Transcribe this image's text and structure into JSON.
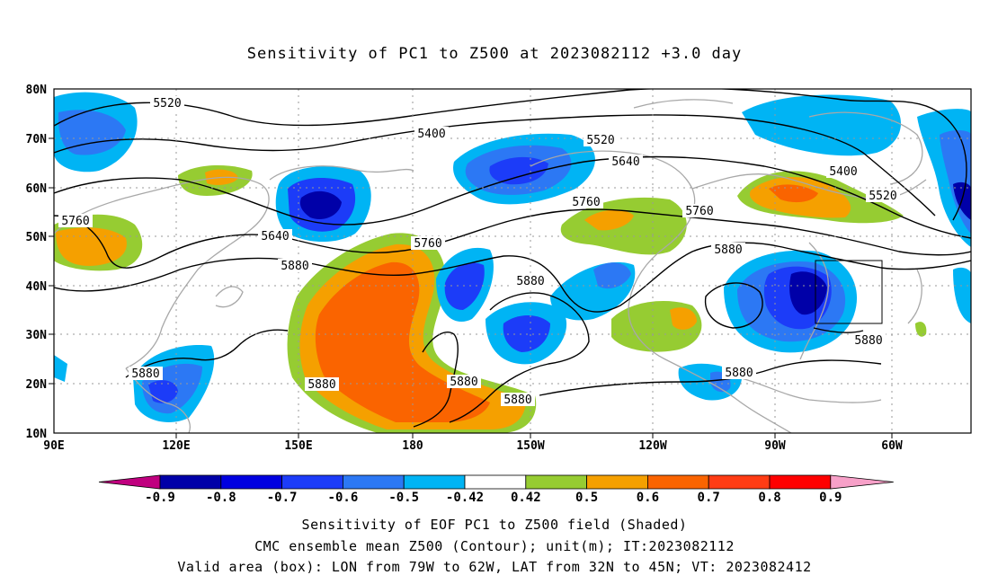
{
  "title": "Sensitivity of PC1 to Z500 at 2023082112 +3.0 day",
  "map": {
    "lat_labels": [
      "80N",
      "70N",
      "60N",
      "50N",
      "40N",
      "30N",
      "20N",
      "10N"
    ],
    "lon_labels": [
      "90E",
      "120E",
      "150E",
      "180",
      "150W",
      "120W",
      "90W",
      "60W"
    ],
    "contour_labels": [
      {
        "text": "5520"
      },
      {
        "text": "5400"
      },
      {
        "text": "5520"
      },
      {
        "text": "5640"
      },
      {
        "text": "5400"
      },
      {
        "text": "5520"
      },
      {
        "text": "5760"
      },
      {
        "text": "5760"
      },
      {
        "text": "5640"
      },
      {
        "text": "5760"
      },
      {
        "text": "5760"
      },
      {
        "text": "5880"
      },
      {
        "text": "5880"
      },
      {
        "text": "5880"
      },
      {
        "text": "5880"
      },
      {
        "text": "5880"
      },
      {
        "text": "5880"
      },
      {
        "text": "5880"
      },
      {
        "text": "5880"
      },
      {
        "text": "5880"
      }
    ]
  },
  "colorbar": {
    "labels": [
      "-0.9",
      "-0.8",
      "-0.7",
      "-0.6",
      "-0.5",
      "-0.42",
      "0.42",
      "0.5",
      "0.6",
      "0.7",
      "0.8",
      "0.9"
    ],
    "colors": [
      "#c0007f",
      "#0000a8",
      "#0000e0",
      "#1c3cf8",
      "#2c78f4",
      "#00b4f4",
      "#ffffff",
      "#96cc32",
      "#f5a000",
      "#fa6400",
      "#ff3c14",
      "#ff0000",
      "#f7a0c8"
    ]
  },
  "captions": [
    "Sensitivity of EOF PC1 to Z500 field (Shaded)",
    "CMC ensemble mean Z500 (Contour); unit(m); IT:2023082112",
    "Valid area (box): LON from 79W to 62W, LAT from 32N to 45N; VT: 2023082412"
  ]
}
